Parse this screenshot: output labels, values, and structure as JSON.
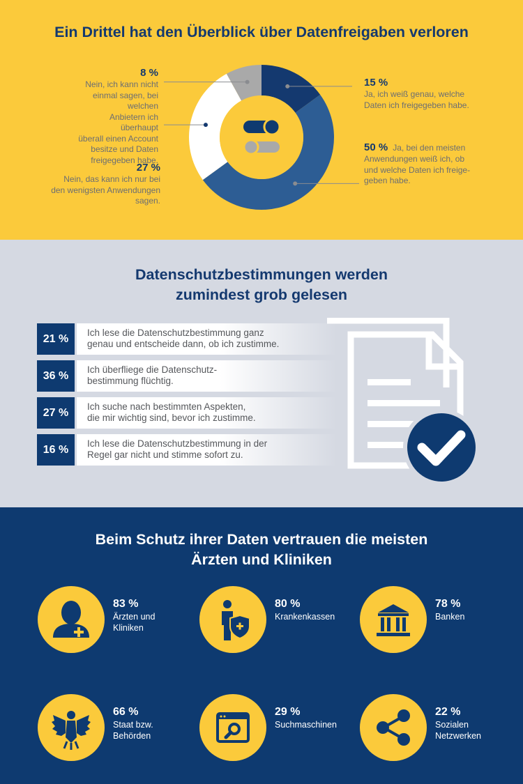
{
  "chart_data": [
    {
      "type": "pie",
      "title": "Ein Drittel hat den Überblick über Datenfreigaben verloren",
      "slices": [
        {
          "value": 15,
          "pct_label": "15 %",
          "label": "Ja, ich weiß genau, welche Daten ich freigegeben habe.",
          "color": "#14396f"
        },
        {
          "value": 50,
          "pct_label": "50 %",
          "label": "Ja, bei den meisten Anwendungen weiß ich, ob und welche Daten ich freigegeben habe.",
          "label_lines": [
            "Ja, bei den meisten",
            "Anwendungen weiß ich, ob",
            "und welche Daten ich freige-",
            "geben habe."
          ],
          "color": "#2d5d94"
        },
        {
          "value": 27,
          "pct_label": "27 %",
          "label": "Nein, das kann ich nur bei den wenigsten Anwendungen sagen.",
          "label_lines": [
            "Nein, das kann ich nur bei",
            "den wenigsten Anwendungen",
            "sagen."
          ],
          "color": "#ffffff"
        },
        {
          "value": 8,
          "pct_label": "8 %",
          "label": "Nein, ich kann nicht einmal sagen, bei welchen Anbietern ich überhaupt überall einen Account besitze und Daten freigegeben habe.",
          "label_lines": [
            "Nein, ich kann nicht",
            "einmal sagen, bei welchen",
            "Anbietern ich überhaupt",
            "überall einen Account",
            "besitze und Daten",
            "freigegeben habe."
          ],
          "color": "#a9a9a9"
        }
      ],
      "label_lines_15": [
        "Ja, ich weiß genau, welche",
        "Daten ich freigegeben habe."
      ]
    },
    {
      "type": "bar",
      "title": "Datenschutzbestimmungen werden zumindest grob gelesen",
      "title_lines": [
        "Datenschutzbestimmungen werden",
        "zumindest grob gelesen"
      ],
      "items": [
        {
          "value": 21,
          "pct_label": "21 %",
          "lines": [
            "Ich lese die Datenschutzbestimmung ganz",
            "genau und entscheide dann, ob ich zustimme."
          ]
        },
        {
          "value": 36,
          "pct_label": "36 %",
          "lines": [
            "Ich überfliege die Datenschutz-",
            "bestimmung flüchtig."
          ]
        },
        {
          "value": 27,
          "pct_label": "27 %",
          "lines": [
            "Ich suche nach bestimmten Aspekten,",
            "die mir wichtig sind, bevor ich zustimme."
          ]
        },
        {
          "value": 16,
          "pct_label": "16 %",
          "lines": [
            "Ich lese die Datenschutzbestimmung in der",
            "Regel gar nicht und stimme sofort zu."
          ]
        }
      ]
    },
    {
      "type": "table",
      "title": "Beim Schutz ihrer Daten vertrauen die meisten Ärzten und Kliniken",
      "title_lines": [
        "Beim Schutz ihrer Daten vertrauen die meisten",
        "Ärzten und Kliniken"
      ],
      "items": [
        {
          "value": 83,
          "pct_label": "83 %",
          "lines": [
            "Ärzten und",
            "Kliniken"
          ],
          "icon": "doctor-icon"
        },
        {
          "value": 80,
          "pct_label": "80 %",
          "lines": [
            "Krankenkassen"
          ],
          "icon": "insurance-shield-icon"
        },
        {
          "value": 78,
          "pct_label": "78 %",
          "lines": [
            "Banken"
          ],
          "icon": "bank-icon"
        },
        {
          "value": 66,
          "pct_label": "66 %",
          "lines": [
            "Staat bzw.",
            "Behörden"
          ],
          "icon": "eagle-icon"
        },
        {
          "value": 29,
          "pct_label": "29 %",
          "lines": [
            "Suchmaschinen"
          ],
          "icon": "search-window-icon"
        },
        {
          "value": 22,
          "pct_label": "22 %",
          "lines": [
            "Sozialen",
            "Netzwerken"
          ],
          "icon": "share-icon"
        }
      ]
    }
  ],
  "colors": {
    "yellow": "#fbca3b",
    "navy": "#0e3a70",
    "mid_blue": "#2d5d94",
    "grey_bg": "#d5d9e2"
  }
}
